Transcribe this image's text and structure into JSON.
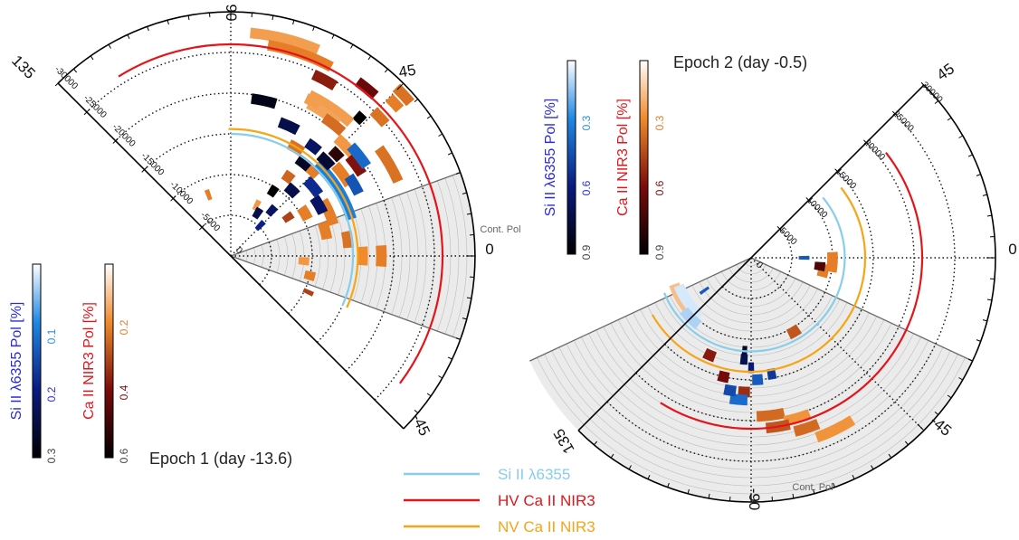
{
  "chart_data": [
    {
      "type": "polar",
      "title": "Epoch 1 (day -13.6)",
      "angle_range_deg": [
        -45,
        135
      ],
      "angle_ticks": [
        "135",
        "90",
        "45",
        "0",
        "-45"
      ],
      "radius_max": 30000,
      "radius_ticks": [
        "0",
        "-5000",
        "-10000",
        "-15000",
        "-20000",
        "-25000",
        "-30000"
      ],
      "continuum_label": "Cont. Pol",
      "continuum_wedge_deg": [
        -20,
        20
      ],
      "reference_arcs": [
        {
          "series": "Si II λ6355",
          "radius": 15000,
          "from_deg": -24,
          "to_deg": 90
        },
        {
          "series": "HV Ca II NIR3",
          "radius": 26000,
          "from_deg": -37,
          "to_deg": 122
        },
        {
          "series": "NV Ca II NIR3",
          "radius": 15600,
          "from_deg": -24,
          "to_deg": 91
        }
      ],
      "si_colorbar": {
        "label": "Si II λ6355 Pol [%]",
        "ticks": [
          "0.1",
          "0.2",
          "0.3"
        ],
        "min": 0,
        "max": 0.3
      },
      "ca_colorbar": {
        "label": "Ca II NIR3 Pol [%]",
        "ticks": [
          "0.2",
          "0.4",
          "0.6"
        ],
        "min": 0,
        "max": 0.6
      },
      "si_points": [
        {
          "r": 19500,
          "a": 78,
          "span": 9,
          "pol": 0.28
        },
        {
          "r": 17500,
          "a": 66,
          "span": 8,
          "pol": 0.24
        },
        {
          "r": 16800,
          "a": 53,
          "span": 6,
          "pol": 0.22
        },
        {
          "r": 14500,
          "a": 52,
          "span": 7,
          "pol": 0.27
        },
        {
          "r": 13200,
          "a": 40,
          "span": 10,
          "pol": 0.18
        },
        {
          "r": 12500,
          "a": 30,
          "span": 10,
          "pol": 0.22
        },
        {
          "r": 11000,
          "a": 47,
          "span": 8,
          "pol": 0.24
        },
        {
          "r": 9500,
          "a": 57,
          "span": 6,
          "pol": 0.3
        },
        {
          "r": 7500,
          "a": 48,
          "span": 7,
          "pol": 0.22
        },
        {
          "r": 6200,
          "a": 58,
          "span": 8,
          "pol": 0.24
        },
        {
          "r": 5200,
          "a": 46,
          "span": 7,
          "pol": 0.19
        },
        {
          "r": 15500,
          "a": 32,
          "span": 30,
          "pol": 0.1
        },
        {
          "r": 16500,
          "a": 45,
          "span": 7,
          "pol": 0.26
        },
        {
          "r": 17500,
          "a": 30,
          "span": 8,
          "pol": 0.14
        },
        {
          "r": 20000,
          "a": 38,
          "span": 9,
          "pol": 0.12
        }
      ],
      "ca_points": [
        {
          "r": 27500,
          "a": 76,
          "span": 18,
          "pol": 0.15
        },
        {
          "r": 26300,
          "a": 71,
          "span": 18,
          "pol": 0.2
        },
        {
          "r": 26500,
          "a": 51,
          "span": 6,
          "pol": 0.42
        },
        {
          "r": 24500,
          "a": 62,
          "span": 7,
          "pol": 0.36
        },
        {
          "r": 23200,
          "a": 47,
          "span": 3,
          "pol": 0.6
        },
        {
          "r": 22000,
          "a": 56,
          "span": 16,
          "pol": 0.15
        },
        {
          "r": 21000,
          "a": 57,
          "span": 12,
          "pol": 0.14
        },
        {
          "r": 20500,
          "a": 52,
          "span": 8,
          "pol": 0.23
        },
        {
          "r": 19500,
          "a": 43,
          "span": 10,
          "pol": 0.16
        },
        {
          "r": 19000,
          "a": 36,
          "span": 8,
          "pol": 0.38
        },
        {
          "r": 18000,
          "a": 44,
          "span": 5,
          "pol": 0.52
        },
        {
          "r": 17000,
          "a": 36,
          "span": 10,
          "pol": 0.2
        },
        {
          "r": 15500,
          "a": 59,
          "span": 7,
          "pol": 0.22
        },
        {
          "r": 14500,
          "a": 47,
          "span": 8,
          "pol": 0.2
        },
        {
          "r": 13200,
          "a": 24,
          "span": 14,
          "pol": 0.2
        },
        {
          "r": 12000,
          "a": 54,
          "span": 6,
          "pol": 0.24
        },
        {
          "r": 10500,
          "a": 30,
          "span": 9,
          "pol": 0.2
        },
        {
          "r": 8500,
          "a": 34,
          "span": 6,
          "pol": 0.3
        },
        {
          "r": 7000,
          "a": 63,
          "span": 5,
          "pol": 0.16
        },
        {
          "r": 29000,
          "a": 43,
          "span": 5,
          "pol": 0.22
        },
        {
          "r": 27500,
          "a": 43,
          "span": 4,
          "pol": 0.2
        },
        {
          "r": 25000,
          "a": 43,
          "span": 5,
          "pol": 0.22
        },
        {
          "r": 22500,
          "a": 30,
          "span": 12,
          "pol": 0.22
        },
        {
          "r": 18500,
          "a": 0,
          "span": 8,
          "pol": 0.2
        },
        {
          "r": 16200,
          "a": 0,
          "span": 8,
          "pol": 0.18
        },
        {
          "r": 14500,
          "a": 8,
          "span": 8,
          "pol": 0.22
        },
        {
          "r": 12000,
          "a": 15,
          "span": 10,
          "pol": 0.2
        },
        {
          "r": 9000,
          "a": -4,
          "span": 6,
          "pol": 0.16
        },
        {
          "r": 10000,
          "a": -14,
          "span": 6,
          "pol": 0.2
        },
        {
          "r": 10500,
          "a": -25,
          "span": 3,
          "pol": 0.3
        },
        {
          "r": 8000,
          "a": 110,
          "span": 4,
          "pol": 0.2
        },
        {
          "r": 21500,
          "a": 62,
          "span": 5,
          "pol": 0.15
        }
      ]
    },
    {
      "type": "polar",
      "title": "Epoch 2 (day -0.5)",
      "angle_range_deg": [
        -135,
        45
      ],
      "angle_ticks": [
        "45",
        "0",
        "-45",
        "-90",
        "135"
      ],
      "radius_max": 30000,
      "radius_ticks": [
        "0",
        "5000",
        "10000",
        "15000",
        "20000",
        "25000",
        "30000"
      ],
      "continuum_label": "Cont. Pol",
      "continuum_wedge_deg": [
        -155,
        -25
      ],
      "reference_arcs": [
        {
          "series": "Si II λ6355",
          "radius": 11500,
          "from_deg": -158,
          "to_deg": 40
        },
        {
          "series": "HV Ca II NIR3",
          "radius": 21000,
          "from_deg": -122,
          "to_deg": 38
        },
        {
          "series": "NV Ca II NIR3",
          "radius": 14000,
          "from_deg": -150,
          "to_deg": 38
        }
      ],
      "si_colorbar": {
        "label": "Si II λ6355 Pol [%]",
        "ticks": [
          "0.3",
          "0.6",
          "0.9"
        ],
        "min": 0,
        "max": 0.9
      },
      "ca_colorbar": {
        "label": "Ca II NIR3 Pol [%]",
        "ticks": [
          "0.3",
          "0.6",
          "0.9"
        ],
        "min": 0,
        "max": 0.9
      },
      "si_points": [
        {
          "r": 9500,
          "a": -145,
          "span": 28,
          "pol": 0.05
        },
        {
          "r": 10500,
          "a": -135,
          "span": 14,
          "pol": 0.1
        },
        {
          "r": 6500,
          "a": 0,
          "span": 4,
          "pol": 0.4
        },
        {
          "r": 7000,
          "a": -145,
          "span": 3,
          "pol": 0.4
        },
        {
          "r": 11500,
          "a": -94,
          "span": 3,
          "pol": 0.8
        },
        {
          "r": 12500,
          "a": -94,
          "span": 4,
          "pol": 0.7
        },
        {
          "r": 13500,
          "a": -90,
          "span": 3,
          "pol": 0.6
        },
        {
          "r": 15000,
          "a": -87,
          "span": 5,
          "pol": 0.4
        },
        {
          "r": 14500,
          "a": -80,
          "span": 4,
          "pol": 0.5
        },
        {
          "r": 17500,
          "a": -95,
          "span": 7,
          "pol": 0.35
        },
        {
          "r": 16500,
          "a": -99,
          "span": 5,
          "pol": 0.45
        }
      ],
      "ca_points": [
        {
          "r": 9000,
          "a": -10,
          "span": 10,
          "pol": 0.3
        },
        {
          "r": 10000,
          "a": -3,
          "span": 14,
          "pol": 0.3
        },
        {
          "r": 8500,
          "a": -7,
          "span": 7,
          "pol": 0.7
        },
        {
          "r": 10500,
          "a": -60,
          "span": 8,
          "pol": 0.4
        },
        {
          "r": 10000,
          "a": -150,
          "span": 22,
          "pol": 0.15
        },
        {
          "r": 13000,
          "a": -113,
          "span": 6,
          "pol": 0.55
        },
        {
          "r": 15000,
          "a": -103,
          "span": 5,
          "pol": 0.6
        },
        {
          "r": 16500,
          "a": -93,
          "span": 5,
          "pol": 0.5
        },
        {
          "r": 19500,
          "a": -83,
          "span": 10,
          "pol": 0.35
        },
        {
          "r": 20500,
          "a": -74,
          "span": 9,
          "pol": 0.25
        },
        {
          "r": 22000,
          "a": -72,
          "span": 8,
          "pol": 0.35
        },
        {
          "r": 21000,
          "a": -81,
          "span": 8,
          "pol": 0.4
        },
        {
          "r": 23500,
          "a": -64,
          "span": 12,
          "pol": 0.25
        }
      ]
    }
  ],
  "legend": [
    {
      "label": "Si II λ6355",
      "color": "#87cdec"
    },
    {
      "label": "HV Ca II NIR3",
      "color": "#e3151a"
    },
    {
      "label": "NV Ca II NIR3",
      "color": "#f5a516"
    }
  ],
  "colors": {
    "si_line": "#87cdec",
    "hv_line": "#e3151a",
    "nv_line": "#f5a516",
    "si_label": "#2b2bd8",
    "ca_label": "#e3151a",
    "si_tick": "#2d8fd9",
    "ca_tick": "#e0802a"
  }
}
